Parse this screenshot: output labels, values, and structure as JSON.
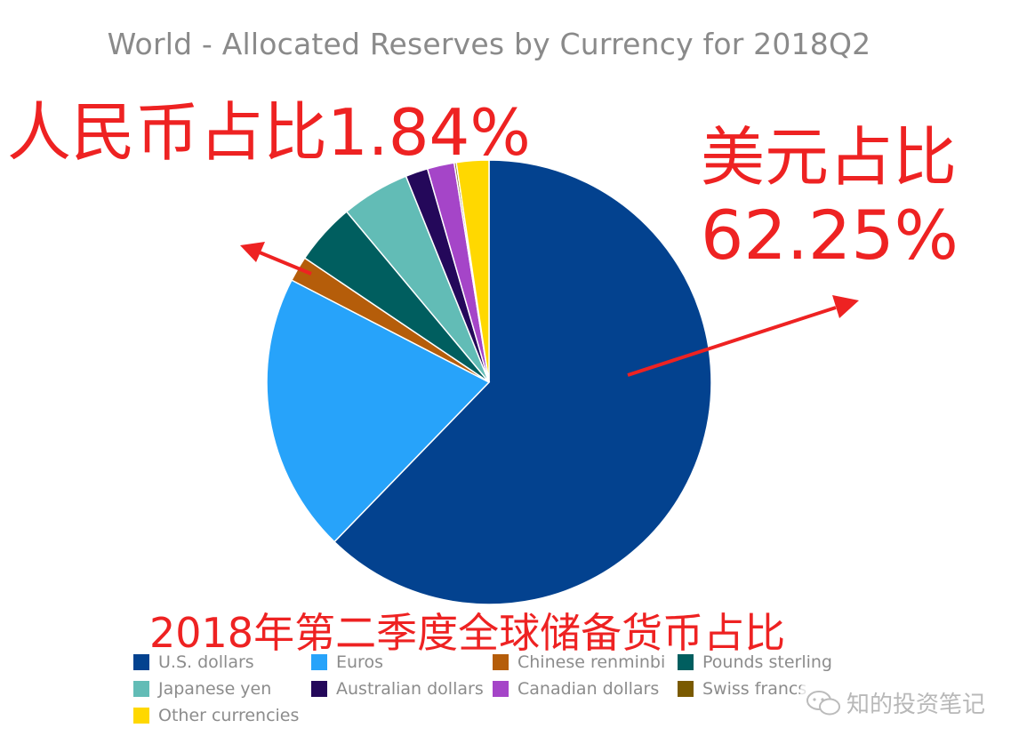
{
  "chart_data": {
    "type": "pie",
    "title": "World - Allocated Reserves by Currency for 2018Q2",
    "subtitle": "2018年第二季度全球储备货币占比",
    "slices": [
      {
        "name": "U.S. dollars",
        "value": 62.25,
        "color": "#03428f"
      },
      {
        "name": "Euros",
        "value": 20.35,
        "color": "#27a3fa"
      },
      {
        "name": "Chinese renminbi",
        "value": 1.84,
        "color": "#b55d0a"
      },
      {
        "name": "Pounds sterling",
        "value": 4.49,
        "color": "#005e5f"
      },
      {
        "name": "Japanese yen",
        "value": 4.97,
        "color": "#62bcb6"
      },
      {
        "name": "Australian dollars",
        "value": 1.63,
        "color": "#24085a"
      },
      {
        "name": "Canadian dollars",
        "value": 1.96,
        "color": "#a545c8"
      },
      {
        "name": "Swiss francs",
        "value": 0.15,
        "color": "#7a5a00"
      },
      {
        "name": "Other currencies",
        "value": 2.36,
        "color": "#ffd800"
      }
    ],
    "legend_placement": "bottom"
  },
  "annotations": {
    "rmb": "人民币占比1.84%",
    "usd_line1": "美元占比",
    "usd_line2": "62.25%",
    "arrow_color": "#ee2222"
  },
  "watermark": {
    "text": "知的投资笔记"
  }
}
